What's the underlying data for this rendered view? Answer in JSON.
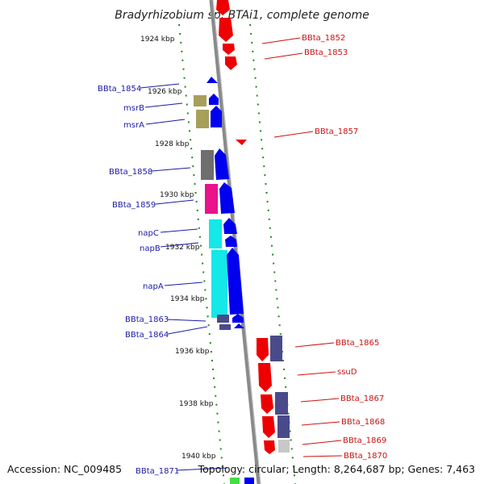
{
  "title": "Bradyrhizobium sp. BTAi1, complete genome",
  "footer": {
    "accession": "Accession: NC_009485",
    "topology": "Topology: circular; Length: 8,264,687 bp; Genes: 7,463"
  },
  "kbp_labels": [
    "1924 kbp",
    "1926 kbp",
    "1928 kbp",
    "1930 kbp",
    "1932 kbp",
    "1934 kbp",
    "1936 kbp",
    "1938 kbp",
    "1940 kbp"
  ],
  "genes_left": [
    "BBta_1854",
    "msrB",
    "msrA",
    "BBta_1858",
    "BBta_1859",
    "napC",
    "napB",
    "napA",
    "BBta_1863",
    "BBta_1864",
    "BBta_1871"
  ],
  "genes_right": [
    "BBta_1852",
    "BBta_1853",
    "BBta_1857",
    "BBta_1865",
    "ssuD",
    "BBta_1867",
    "BBta_1868",
    "BBta_1869",
    "BBta_1870"
  ],
  "colors": {
    "forward_strand": "#ee0000",
    "reverse_strand": "#0000ee",
    "backbone": "#8a8a8a",
    "dotted_track": "#1f8a1f",
    "cog_olive": "#a89f5a",
    "cog_gray": "#6e6e6e",
    "cog_magenta": "#e8128a",
    "cog_cyan": "#14e8e8",
    "cog_slate": "#4a4a8a",
    "cog_light": "#c8c8c8",
    "cog_green": "#44dd44"
  }
}
